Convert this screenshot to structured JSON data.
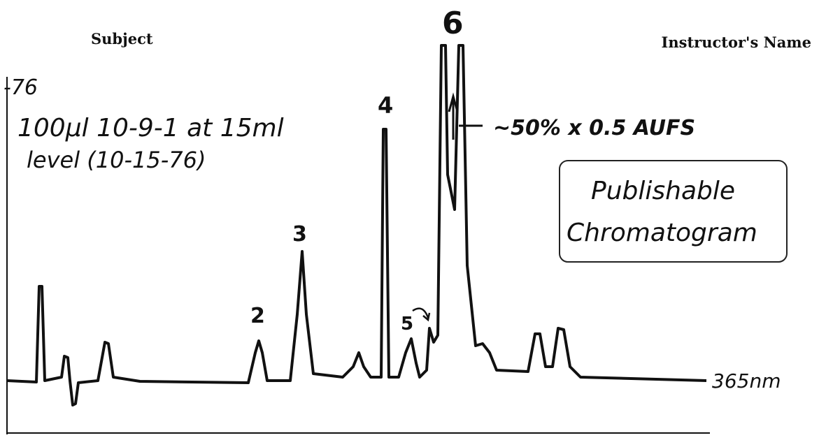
{
  "header": {
    "subject": "Subject",
    "instructor": "Instructor's Name"
  },
  "notes": {
    "date_mark": "-76",
    "sample_line1": "100µl 10-9-1 at 15ml",
    "sample_line2": "level (10-15-76)",
    "attenuation": "~50% x 0.5 AUFS",
    "stamp_line1": "Publishable",
    "stamp_line2": "Chromatogram",
    "wavelength": "365nm"
  },
  "peaks": [
    {
      "label": "2"
    },
    {
      "label": "3"
    },
    {
      "label": "4"
    },
    {
      "label": "5"
    },
    {
      "label": "6"
    }
  ]
}
